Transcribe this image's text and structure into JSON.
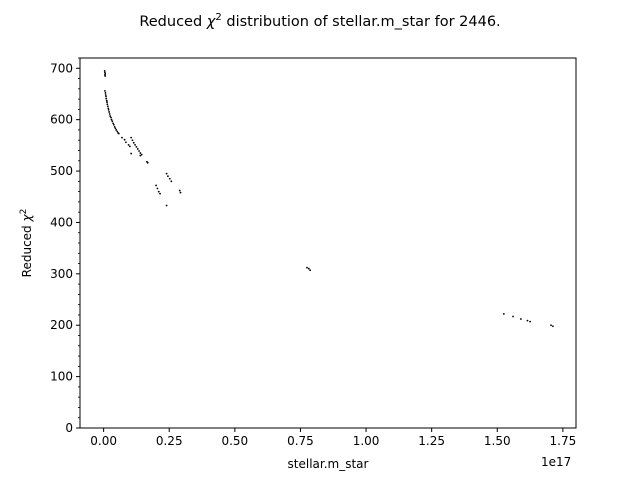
{
  "chart_data": {
    "type": "scatter",
    "title_prefix": "Reduced ",
    "title_symbol": "χ",
    "title_exp": "2",
    "title_suffix": " distribution of stellar.m_star for 2446.",
    "xlabel": "stellar.m_star",
    "ylabel_prefix": "Reduced ",
    "ylabel_symbol": "χ",
    "ylabel_exp": "2",
    "x_offset_label": "1e17",
    "x_scale": 1e+17,
    "xlim": [
      -0.09,
      1.8
    ],
    "ylim": [
      0,
      720
    ],
    "xticks": [
      0.0,
      0.25,
      0.5,
      0.75,
      1.0,
      1.25,
      1.5,
      1.75
    ],
    "xtick_labels": [
      "0.00",
      "0.25",
      "0.50",
      "0.75",
      "1.00",
      "1.25",
      "1.50",
      "1.75"
    ],
    "yticks": [
      0,
      100,
      200,
      300,
      400,
      500,
      600,
      700
    ],
    "ytick_labels": [
      "0",
      "100",
      "200",
      "300",
      "400",
      "500",
      "600",
      "700"
    ],
    "y_minor_step": 20,
    "grid": false,
    "marker_color": "#000000",
    "points": [
      [
        0.004,
        695
      ],
      [
        0.005,
        692
      ],
      [
        0.006,
        689
      ],
      [
        0.005,
        687
      ],
      [
        0.006,
        685
      ],
      [
        0.005,
        656
      ],
      [
        0.007,
        652
      ],
      [
        0.008,
        648
      ],
      [
        0.009,
        645
      ],
      [
        0.01,
        641
      ],
      [
        0.012,
        637
      ],
      [
        0.013,
        634
      ],
      [
        0.014,
        630
      ],
      [
        0.016,
        626
      ],
      [
        0.018,
        622
      ],
      [
        0.019,
        619
      ],
      [
        0.021,
        615
      ],
      [
        0.023,
        611
      ],
      [
        0.025,
        607
      ],
      [
        0.028,
        604
      ],
      [
        0.03,
        600
      ],
      [
        0.033,
        597
      ],
      [
        0.036,
        593
      ],
      [
        0.039,
        590
      ],
      [
        0.042,
        586
      ],
      [
        0.045,
        583
      ],
      [
        0.048,
        580
      ],
      [
        0.052,
        577
      ],
      [
        0.055,
        574
      ],
      [
        0.058,
        573
      ],
      [
        0.07,
        565
      ],
      [
        0.08,
        561
      ],
      [
        0.085,
        556
      ],
      [
        0.095,
        551
      ],
      [
        0.1,
        548
      ],
      [
        0.105,
        565
      ],
      [
        0.11,
        560
      ],
      [
        0.115,
        555
      ],
      [
        0.12,
        551
      ],
      [
        0.125,
        547
      ],
      [
        0.13,
        543
      ],
      [
        0.135,
        539
      ],
      [
        0.14,
        535
      ],
      [
        0.145,
        532
      ],
      [
        0.105,
        534
      ],
      [
        0.14,
        530
      ],
      [
        0.165,
        518
      ],
      [
        0.168,
        516
      ],
      [
        0.2,
        472
      ],
      [
        0.205,
        466
      ],
      [
        0.21,
        460
      ],
      [
        0.215,
        456
      ],
      [
        0.24,
        495
      ],
      [
        0.245,
        490
      ],
      [
        0.252,
        485
      ],
      [
        0.258,
        480
      ],
      [
        0.24,
        433
      ],
      [
        0.29,
        462
      ],
      [
        0.293,
        458
      ],
      [
        0.775,
        312
      ],
      [
        0.782,
        310
      ],
      [
        0.787,
        307
      ],
      [
        1.525,
        222
      ],
      [
        1.56,
        217
      ],
      [
        1.59,
        212
      ],
      [
        1.615,
        209
      ],
      [
        1.625,
        207
      ],
      [
        1.705,
        200
      ],
      [
        1.712,
        198
      ]
    ]
  }
}
